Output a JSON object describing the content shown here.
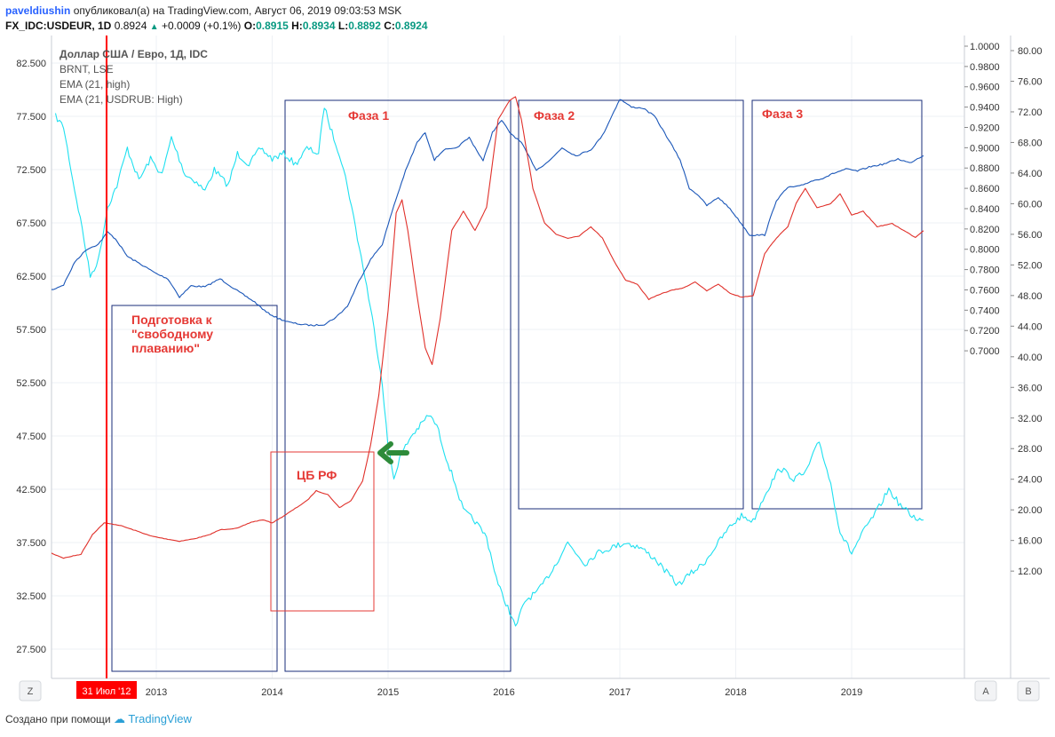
{
  "header": {
    "author": "paveldiushin",
    "published_text": "опубликовал(а) на TradingView.com, Август 06, 2019 09:03:53 MSK",
    "symbol": "FX_IDC:USDEUR, 1D",
    "last": "0.8924",
    "change": "+0.0009 (+0.1%)",
    "o_label": "O:",
    "o_value": "0.8915",
    "h_label": "H:",
    "h_value": "0.8934",
    "l_label": "L:",
    "l_value": "0.8892",
    "c_label": "C:",
    "c_value": "0.8924"
  },
  "legend": {
    "title": "Доллар США / Евро, 1Д, IDC",
    "line2": "BRNT, LSE",
    "line3": "EMA (21, high)",
    "line4": "EMA (21, USDRUB: High)"
  },
  "annotations": {
    "prep": [
      "Подготовка к",
      "\"свободному",
      "плаванию\""
    ],
    "phase1": "Фаза 1",
    "phase2": "Фаза 2",
    "phase3": "Фаза 3",
    "cbr": "ЦБ РФ",
    "date_marker": "31 Июл '12"
  },
  "buttons": {
    "z": "Z",
    "a": "A",
    "b": "B"
  },
  "footer": {
    "created": "Создано при помощи",
    "brand": "TradingView"
  },
  "colors": {
    "brent": "#1ee0f0",
    "usdeur_ema": "#1a56b8",
    "usdrub_ema": "#e0302a",
    "marker": "#ff0000",
    "annotation_red": "#e53935",
    "box_navy": "#1a2d7a",
    "arrow_green": "#2e8b3a",
    "grid": "#eef1f5"
  },
  "chart_data": {
    "type": "line",
    "x_ticks": [
      "2013",
      "2014",
      "2015",
      "2016",
      "2017",
      "2018",
      "2019"
    ],
    "y_left": {
      "label": "BRNT",
      "ticks": [
        "82.500",
        "77.500",
        "72.500",
        "67.500",
        "62.500",
        "57.500",
        "52.500",
        "47.500",
        "42.500",
        "37.500",
        "32.500",
        "27.500"
      ],
      "range": [
        25.0,
        85.0
      ]
    },
    "y_mid": {
      "label": "USDEUR",
      "ticks": [
        "1.0000",
        "0.9800",
        "0.9600",
        "0.9400",
        "0.9200",
        "0.9000",
        "0.8800",
        "0.8600",
        "0.8400",
        "0.8200",
        "0.8000",
        "0.7800",
        "0.7600",
        "0.7400",
        "0.7200",
        "0.7000"
      ],
      "range": [
        0.69,
        1.005
      ]
    },
    "y_right": {
      "label": "USDRUB",
      "ticks": [
        "80.00",
        "76.00",
        "72.00",
        "68.00",
        "64.00",
        "60.00",
        "56.00",
        "52.00",
        "48.00",
        "44.00",
        "40.00",
        "36.00",
        "32.00",
        "28.00",
        "24.00",
        "20.00",
        "16.00",
        "12.00"
      ],
      "range": [
        8.4,
        81.6
      ]
    },
    "series": [
      {
        "name": "BRNT, LSE",
        "axis": "left",
        "points": [
          [
            2012.13,
            77.5
          ],
          [
            2012.2,
            76.5
          ],
          [
            2012.28,
            71.5
          ],
          [
            2012.36,
            67.0
          ],
          [
            2012.43,
            62.5
          ],
          [
            2012.5,
            64.0
          ],
          [
            2012.58,
            69.0
          ],
          [
            2012.66,
            71.0
          ],
          [
            2012.75,
            74.5
          ],
          [
            2012.85,
            71.5
          ],
          [
            2012.95,
            73.5
          ],
          [
            2013.05,
            72.0
          ],
          [
            2013.13,
            75.5
          ],
          [
            2013.25,
            72.0
          ],
          [
            2013.33,
            71.5
          ],
          [
            2013.42,
            70.5
          ],
          [
            2013.5,
            72.5
          ],
          [
            2013.62,
            71.0
          ],
          [
            2013.7,
            74.0
          ],
          [
            2013.8,
            73.0
          ],
          [
            2013.9,
            74.5
          ],
          [
            2014.0,
            73.5
          ],
          [
            2014.1,
            74.0
          ],
          [
            2014.2,
            73.0
          ],
          [
            2014.3,
            74.5
          ],
          [
            2014.4,
            74.0
          ],
          [
            2014.45,
            78.5
          ],
          [
            2014.5,
            76.5
          ],
          [
            2014.58,
            74.0
          ],
          [
            2014.65,
            71.0
          ],
          [
            2014.72,
            67.0
          ],
          [
            2014.8,
            62.5
          ],
          [
            2014.88,
            57.5
          ],
          [
            2014.95,
            52.5
          ],
          [
            2015.0,
            46.5
          ],
          [
            2015.05,
            43.5
          ],
          [
            2015.1,
            45.5
          ],
          [
            2015.2,
            47.5
          ],
          [
            2015.28,
            48.5
          ],
          [
            2015.35,
            49.5
          ],
          [
            2015.42,
            48.5
          ],
          [
            2015.5,
            45.5
          ],
          [
            2015.58,
            43.0
          ],
          [
            2015.65,
            40.5
          ],
          [
            2015.75,
            39.5
          ],
          [
            2015.85,
            38.0
          ],
          [
            2015.95,
            33.5
          ],
          [
            2016.05,
            31.0
          ],
          [
            2016.1,
            29.5
          ],
          [
            2016.18,
            32.0
          ],
          [
            2016.3,
            33.0
          ],
          [
            2016.42,
            35.0
          ],
          [
            2016.55,
            37.5
          ],
          [
            2016.7,
            35.5
          ],
          [
            2016.8,
            36.5
          ],
          [
            2016.92,
            37.0
          ],
          [
            2017.05,
            37.5
          ],
          [
            2017.18,
            37.0
          ],
          [
            2017.3,
            36.0
          ],
          [
            2017.42,
            34.5
          ],
          [
            2017.5,
            33.5
          ],
          [
            2017.6,
            34.5
          ],
          [
            2017.72,
            35.5
          ],
          [
            2017.85,
            37.5
          ],
          [
            2017.95,
            39.0
          ],
          [
            2018.05,
            40.0
          ],
          [
            2018.15,
            39.5
          ],
          [
            2018.25,
            42.0
          ],
          [
            2018.38,
            44.5
          ],
          [
            2018.5,
            43.5
          ],
          [
            2018.6,
            44.0
          ],
          [
            2018.72,
            47.0
          ],
          [
            2018.82,
            43.0
          ],
          [
            2018.9,
            38.5
          ],
          [
            2019.0,
            36.5
          ],
          [
            2019.1,
            38.5
          ],
          [
            2019.22,
            40.5
          ],
          [
            2019.32,
            42.5
          ],
          [
            2019.42,
            41.0
          ],
          [
            2019.52,
            40.0
          ],
          [
            2019.62,
            39.5
          ]
        ]
      },
      {
        "name": "EMA (21, high)",
        "axis": "mid",
        "points": [
          [
            2012.0,
            0.768
          ],
          [
            2012.1,
            0.76
          ],
          [
            2012.2,
            0.765
          ],
          [
            2012.3,
            0.788
          ],
          [
            2012.4,
            0.8
          ],
          [
            2012.5,
            0.805
          ],
          [
            2012.58,
            0.817
          ],
          [
            2012.65,
            0.81
          ],
          [
            2012.75,
            0.793
          ],
          [
            2012.9,
            0.783
          ],
          [
            2013.0,
            0.776
          ],
          [
            2013.1,
            0.771
          ],
          [
            2013.2,
            0.753
          ],
          [
            2013.3,
            0.764
          ],
          [
            2013.42,
            0.763
          ],
          [
            2013.55,
            0.771
          ],
          [
            2013.7,
            0.759
          ],
          [
            2013.85,
            0.748
          ],
          [
            2013.95,
            0.738
          ],
          [
            2014.05,
            0.732
          ],
          [
            2014.15,
            0.728
          ],
          [
            2014.25,
            0.726
          ],
          [
            2014.35,
            0.725
          ],
          [
            2014.45,
            0.726
          ],
          [
            2014.55,
            0.733
          ],
          [
            2014.65,
            0.744
          ],
          [
            2014.75,
            0.769
          ],
          [
            2014.85,
            0.79
          ],
          [
            2014.95,
            0.805
          ],
          [
            2015.05,
            0.843
          ],
          [
            2015.15,
            0.877
          ],
          [
            2015.25,
            0.905
          ],
          [
            2015.32,
            0.915
          ],
          [
            2015.4,
            0.888
          ],
          [
            2015.48,
            0.898
          ],
          [
            2015.58,
            0.899
          ],
          [
            2015.7,
            0.91
          ],
          [
            2015.82,
            0.887
          ],
          [
            2015.9,
            0.915
          ],
          [
            2015.98,
            0.927
          ],
          [
            2016.05,
            0.915
          ],
          [
            2016.15,
            0.905
          ],
          [
            2016.28,
            0.878
          ],
          [
            2016.4,
            0.888
          ],
          [
            2016.5,
            0.9
          ],
          [
            2016.62,
            0.892
          ],
          [
            2016.75,
            0.898
          ],
          [
            2016.85,
            0.912
          ],
          [
            2016.95,
            0.936
          ],
          [
            2017.0,
            0.948
          ],
          [
            2017.1,
            0.94
          ],
          [
            2017.2,
            0.939
          ],
          [
            2017.3,
            0.931
          ],
          [
            2017.42,
            0.908
          ],
          [
            2017.52,
            0.888
          ],
          [
            2017.6,
            0.86
          ],
          [
            2017.68,
            0.853
          ],
          [
            2017.75,
            0.843
          ],
          [
            2017.85,
            0.851
          ],
          [
            2017.95,
            0.84
          ],
          [
            2018.05,
            0.825
          ],
          [
            2018.12,
            0.814
          ],
          [
            2018.25,
            0.814
          ],
          [
            2018.35,
            0.848
          ],
          [
            2018.45,
            0.861
          ],
          [
            2018.55,
            0.862
          ],
          [
            2018.65,
            0.867
          ],
          [
            2018.75,
            0.87
          ],
          [
            2018.85,
            0.875
          ],
          [
            2018.95,
            0.879
          ],
          [
            2019.05,
            0.877
          ],
          [
            2019.15,
            0.881
          ],
          [
            2019.28,
            0.884
          ],
          [
            2019.4,
            0.889
          ],
          [
            2019.5,
            0.885
          ],
          [
            2019.62,
            0.8925
          ]
        ]
      },
      {
        "name": "EMA (21, USDRUB: High)",
        "axis": "right",
        "points": [
          [
            2012.0,
            15.5
          ],
          [
            2012.1,
            14.3
          ],
          [
            2012.2,
            13.7
          ],
          [
            2012.35,
            14.2
          ],
          [
            2012.45,
            16.8
          ],
          [
            2012.55,
            18.3
          ],
          [
            2012.68,
            18.0
          ],
          [
            2012.82,
            17.3
          ],
          [
            2012.95,
            16.6
          ],
          [
            2013.05,
            16.3
          ],
          [
            2013.2,
            15.9
          ],
          [
            2013.32,
            16.2
          ],
          [
            2013.45,
            16.7
          ],
          [
            2013.55,
            17.4
          ],
          [
            2013.7,
            17.6
          ],
          [
            2013.82,
            18.4
          ],
          [
            2013.92,
            18.7
          ],
          [
            2014.0,
            18.3
          ],
          [
            2014.1,
            19.2
          ],
          [
            2014.2,
            20.2
          ],
          [
            2014.3,
            21.2
          ],
          [
            2014.38,
            22.5
          ],
          [
            2014.48,
            22.0
          ],
          [
            2014.58,
            20.3
          ],
          [
            2014.68,
            21.2
          ],
          [
            2014.78,
            23.8
          ],
          [
            2014.85,
            28.5
          ],
          [
            2014.92,
            35.0
          ],
          [
            2015.0,
            46.0
          ],
          [
            2015.07,
            58.8
          ],
          [
            2015.12,
            60.5
          ],
          [
            2015.17,
            56.5
          ],
          [
            2015.25,
            48.0
          ],
          [
            2015.32,
            41.2
          ],
          [
            2015.38,
            39.0
          ],
          [
            2015.45,
            45.0
          ],
          [
            2015.55,
            56.5
          ],
          [
            2015.65,
            59.0
          ],
          [
            2015.75,
            56.5
          ],
          [
            2015.85,
            59.5
          ],
          [
            2015.95,
            71.0
          ],
          [
            2016.05,
            73.5
          ],
          [
            2016.1,
            74.0
          ],
          [
            2016.15,
            71.0
          ],
          [
            2016.25,
            62.0
          ],
          [
            2016.35,
            57.5
          ],
          [
            2016.45,
            56.0
          ],
          [
            2016.55,
            55.5
          ],
          [
            2016.65,
            55.8
          ],
          [
            2016.75,
            57.0
          ],
          [
            2016.85,
            55.5
          ],
          [
            2016.95,
            52.5
          ],
          [
            2017.05,
            50.0
          ],
          [
            2017.15,
            49.5
          ],
          [
            2017.25,
            47.5
          ],
          [
            2017.35,
            48.2
          ],
          [
            2017.45,
            48.7
          ],
          [
            2017.55,
            49.0
          ],
          [
            2017.65,
            49.8
          ],
          [
            2017.75,
            48.6
          ],
          [
            2017.85,
            49.5
          ],
          [
            2017.95,
            48.3
          ],
          [
            2018.05,
            47.8
          ],
          [
            2018.15,
            48.0
          ],
          [
            2018.25,
            53.5
          ],
          [
            2018.35,
            55.5
          ],
          [
            2018.45,
            57.0
          ],
          [
            2018.52,
            60.0
          ],
          [
            2018.6,
            62.0
          ],
          [
            2018.7,
            59.5
          ],
          [
            2018.82,
            60.0
          ],
          [
            2018.9,
            61.3
          ],
          [
            2019.0,
            58.5
          ],
          [
            2019.1,
            59.0
          ],
          [
            2019.22,
            57.0
          ],
          [
            2019.35,
            57.4
          ],
          [
            2019.45,
            56.5
          ],
          [
            2019.55,
            55.6
          ],
          [
            2019.62,
            56.5
          ]
        ]
      }
    ],
    "grid": true,
    "legend": "top-left"
  }
}
